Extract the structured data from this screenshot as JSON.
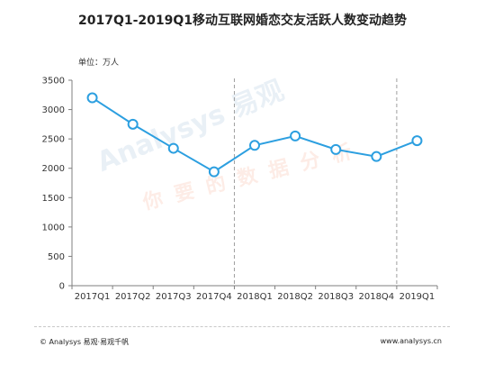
{
  "title": "2017Q1-2019Q1移动互联网婚恋交友活跃人数变动趋势",
  "unit_label": "单位：万人",
  "watermark": {
    "line1": "Analysys 易观",
    "line2": "你要的数据分析"
  },
  "footer": {
    "left": "© Analysys 易观·易观千帆",
    "right": "www.analysys.cn"
  },
  "colors": {
    "line": "#2c9fe0",
    "marker_fill": "#ffffff",
    "axis": "#7f7f7f",
    "divider": "#9e9e9e"
  },
  "chart_data": {
    "type": "line",
    "title": "2017Q1-2019Q1移动互联网婚恋交友活跃人数变动趋势",
    "ylabel": "单位：万人",
    "categories": [
      "2017Q1",
      "2017Q2",
      "2017Q3",
      "2017Q4",
      "2018Q1",
      "2018Q2",
      "2018Q3",
      "2018Q4",
      "2019Q1"
    ],
    "values": [
      3200,
      2750,
      2340,
      1940,
      2390,
      2550,
      2320,
      2200,
      2470
    ],
    "ylim": [
      0,
      3500
    ],
    "yticks": [
      0,
      500,
      1000,
      1500,
      2000,
      2500,
      3000,
      3500
    ],
    "grid": false,
    "dividers_after": [
      "2017Q4",
      "2018Q4"
    ],
    "legend": "none"
  }
}
